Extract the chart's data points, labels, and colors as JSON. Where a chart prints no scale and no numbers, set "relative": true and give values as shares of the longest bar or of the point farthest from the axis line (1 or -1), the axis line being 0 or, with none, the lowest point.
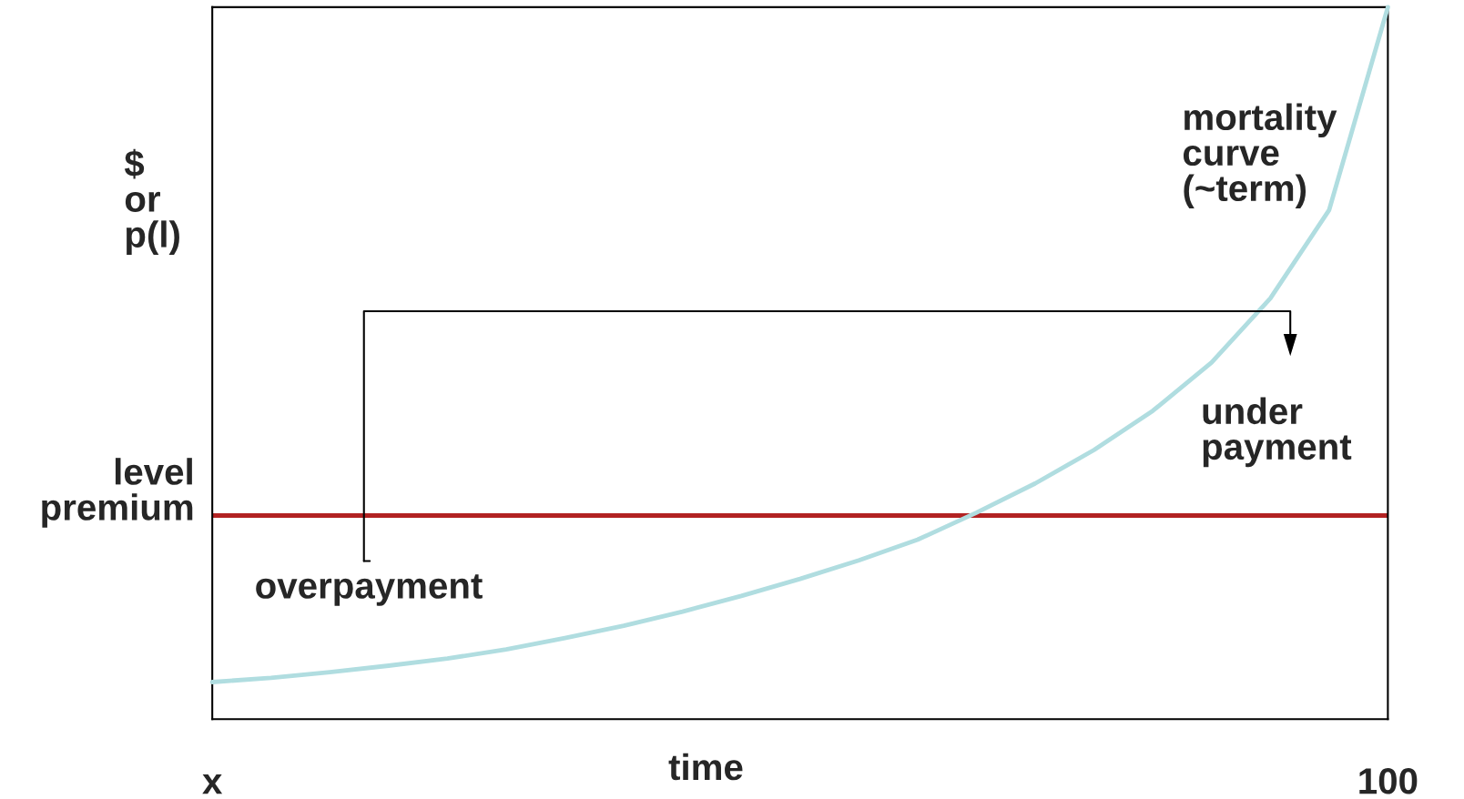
{
  "chart_data": {
    "type": "line",
    "relative": true,
    "xlabel": "time",
    "ylabel": "$\nor\np(l)",
    "categories": [
      "x",
      null,
      null,
      null,
      null,
      null,
      null,
      null,
      null,
      null,
      null,
      null,
      null,
      null,
      null,
      null,
      null,
      null,
      null,
      null,
      "100"
    ],
    "series": [
      {
        "color": "#b0dde0",
        "values": [
          0.052,
          0.058,
          0.066,
          0.075,
          0.085,
          0.098,
          0.114,
          0.131,
          0.151,
          0.173,
          0.197,
          0.223,
          0.252,
          0.29,
          0.331,
          0.378,
          0.433,
          0.501,
          0.591,
          0.715,
          1.0
        ]
      }
    ],
    "ref_lines": [
      {
        "axis": "y",
        "value": 0.286,
        "label": "level\npremium",
        "color": "#b22222"
      }
    ],
    "annotations": [
      "mortality\ncurve\n(~term)",
      "under\npayment",
      "overpayment"
    ],
    "grid": false,
    "legend": false,
    "marker": "none",
    "line_style": "solid"
  }
}
